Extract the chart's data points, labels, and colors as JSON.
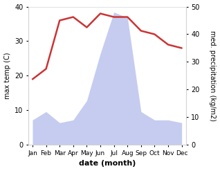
{
  "months": [
    "Jan",
    "Feb",
    "Mar",
    "Apr",
    "May",
    "Jun",
    "Jul",
    "Aug",
    "Sep",
    "Oct",
    "Nov",
    "Dec"
  ],
  "temp": [
    19,
    22,
    36,
    37,
    34,
    38,
    37,
    37,
    33,
    32,
    29,
    28
  ],
  "precip": [
    9,
    12,
    8,
    9,
    16,
    33,
    48,
    46,
    12,
    9,
    9,
    8
  ],
  "temp_color": "#cc3333",
  "precip_fill_color": "#c5ccf0",
  "ylabel_left": "max temp (C)",
  "ylabel_right": "med. precipitation (kg/m2)",
  "xlabel": "date (month)",
  "ylim_left": [
    0,
    40
  ],
  "ylim_right": [
    0,
    50
  ],
  "yticks_left": [
    0,
    10,
    20,
    30,
    40
  ],
  "yticks_right": [
    0,
    10,
    20,
    30,
    40,
    50
  ],
  "bg_color": "#ffffff",
  "temp_linewidth": 1.8
}
